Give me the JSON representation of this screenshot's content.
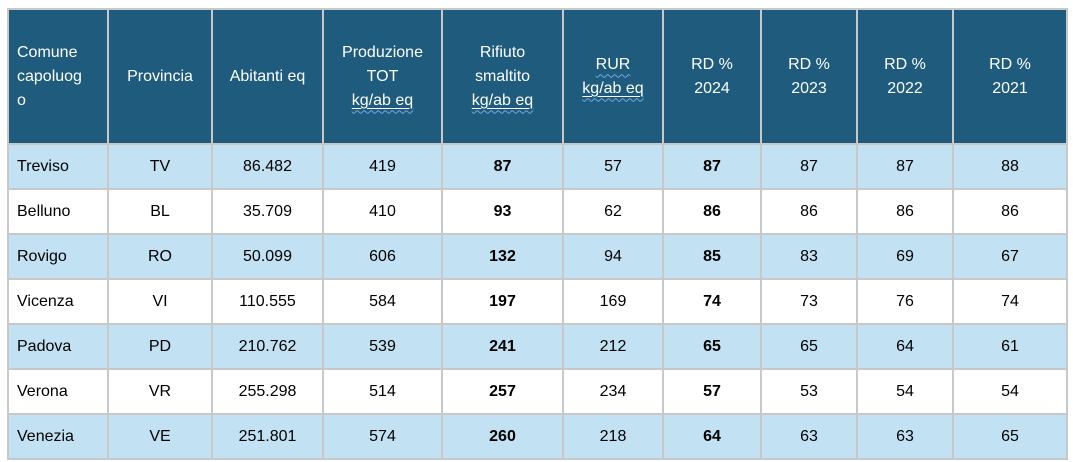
{
  "colors": {
    "header_bg": "#1e5b7c",
    "header_text": "#ffffff",
    "row_alt_bg": "#c2e2f3",
    "row_bg": "#ffffff",
    "cell_border": "#c8c8c8",
    "spellcheck_squiggle": "#6fa9e9",
    "body_text": "#000000"
  },
  "table": {
    "columns": [
      {
        "id": "comune",
        "bold": false,
        "lines": [
          {
            "text": "Comune capoluogo",
            "underline": false,
            "wavy": false
          }
        ]
      },
      {
        "id": "provincia",
        "bold": false,
        "lines": [
          {
            "text": "Provincia",
            "underline": false,
            "wavy": false
          }
        ]
      },
      {
        "id": "abitanti",
        "bold": false,
        "lines": [
          {
            "text": "Abitanti eq",
            "underline": false,
            "wavy": false
          }
        ]
      },
      {
        "id": "produzione",
        "bold": false,
        "lines": [
          {
            "text": "Produzione",
            "underline": false,
            "wavy": false
          },
          {
            "text": "TOT",
            "underline": false,
            "wavy": false
          },
          {
            "text": "kg/ab eq",
            "underline": true,
            "wavy": true
          }
        ]
      },
      {
        "id": "rifiuto",
        "bold": true,
        "lines": [
          {
            "text": "Rifiuto",
            "underline": false,
            "wavy": false
          },
          {
            "text": "smaltito",
            "underline": false,
            "wavy": false
          },
          {
            "text": "kg/ab eq",
            "underline": true,
            "wavy": true
          }
        ]
      },
      {
        "id": "rur",
        "bold": false,
        "lines": [
          {
            "text": "RUR",
            "underline": false,
            "wavy": true
          },
          {
            "text": "kg/ab eq",
            "underline": true,
            "wavy": true
          }
        ]
      },
      {
        "id": "rd2024",
        "bold": true,
        "lines": [
          {
            "text": "RD %",
            "underline": false,
            "wavy": false
          },
          {
            "text": "2024",
            "underline": false,
            "wavy": false
          }
        ]
      },
      {
        "id": "rd2023",
        "bold": false,
        "lines": [
          {
            "text": "RD %",
            "underline": false,
            "wavy": false
          },
          {
            "text": "2023",
            "underline": false,
            "wavy": false
          }
        ]
      },
      {
        "id": "rd2022",
        "bold": false,
        "lines": [
          {
            "text": "RD %",
            "underline": false,
            "wavy": false
          },
          {
            "text": "2022",
            "underline": false,
            "wavy": false
          }
        ]
      },
      {
        "id": "rd2021",
        "bold": false,
        "lines": [
          {
            "text": "RD %",
            "underline": false,
            "wavy": false
          },
          {
            "text": "2021",
            "underline": false,
            "wavy": false
          }
        ]
      }
    ],
    "rows": [
      {
        "cells": {
          "comune": "Treviso",
          "provincia": "TV",
          "abitanti": "86.482",
          "produzione": "419",
          "rifiuto": "87",
          "rur": "57",
          "rd2024": "87",
          "rd2023": "87",
          "rd2022": "87",
          "rd2021": "88"
        }
      },
      {
        "cells": {
          "comune": "Belluno",
          "provincia": "BL",
          "abitanti": "35.709",
          "produzione": "410",
          "rifiuto": "93",
          "rur": "62",
          "rd2024": "86",
          "rd2023": "86",
          "rd2022": "86",
          "rd2021": "86"
        }
      },
      {
        "cells": {
          "comune": "Rovigo",
          "provincia": "RO",
          "abitanti": "50.099",
          "produzione": "606",
          "rifiuto": "132",
          "rur": "94",
          "rd2024": "85",
          "rd2023": "83",
          "rd2022": "69",
          "rd2021": "67"
        }
      },
      {
        "cells": {
          "comune": "Vicenza",
          "provincia": "VI",
          "abitanti": "110.555",
          "produzione": "584",
          "rifiuto": "197",
          "rur": "169",
          "rd2024": "74",
          "rd2023": "73",
          "rd2022": "76",
          "rd2021": "74"
        }
      },
      {
        "cells": {
          "comune": "Padova",
          "provincia": "PD",
          "abitanti": "210.762",
          "produzione": "539",
          "rifiuto": "241",
          "rur": "212",
          "rd2024": "65",
          "rd2023": "65",
          "rd2022": "64",
          "rd2021": "61"
        }
      },
      {
        "cells": {
          "comune": "Verona",
          "provincia": "VR",
          "abitanti": "255.298",
          "produzione": "514",
          "rifiuto": "257",
          "rur": "234",
          "rd2024": "57",
          "rd2023": "53",
          "rd2022": "54",
          "rd2021": "54"
        }
      },
      {
        "cells": {
          "comune": "Venezia",
          "provincia": "VE",
          "abitanti": "251.801",
          "produzione": "574",
          "rifiuto": "260",
          "rur": "218",
          "rd2024": "64",
          "rd2023": "63",
          "rd2022": "63",
          "rd2021": "65"
        }
      }
    ]
  }
}
